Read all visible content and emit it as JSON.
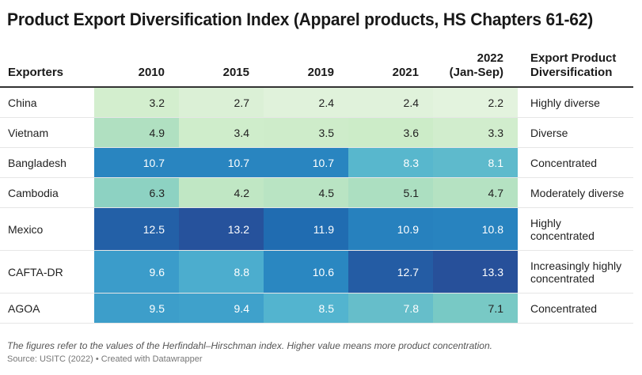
{
  "chart_data": {
    "type": "heatmap",
    "title": "Product Export Diversification Index (Apparel products, HS Chapters 61-62)",
    "columns": {
      "exporters": "Exporters",
      "years": [
        "2010",
        "2015",
        "2019",
        "2021",
        "2022 (Jan-Sep)"
      ],
      "year_lines": [
        [
          "2010"
        ],
        [
          "2015"
        ],
        [
          "2019"
        ],
        [
          "2021"
        ],
        [
          "2022",
          "(Jan-Sep)"
        ]
      ],
      "diversification": [
        "Export Product",
        "Diversification"
      ]
    },
    "rows": [
      {
        "exporter": "China",
        "values": [
          3.2,
          2.7,
          2.4,
          2.4,
          2.2
        ],
        "labels": [
          "3.2",
          "2.7",
          "2.4",
          "2.4",
          "2.2"
        ],
        "diversification": [
          "Highly diverse"
        ]
      },
      {
        "exporter": "Vietnam",
        "values": [
          4.9,
          3.4,
          3.5,
          3.6,
          3.3
        ],
        "labels": [
          "4.9",
          "3.4",
          "3.5",
          "3.6",
          "3.3"
        ],
        "diversification": [
          "Diverse"
        ]
      },
      {
        "exporter": "Bangladesh",
        "values": [
          10.7,
          10.7,
          10.7,
          8.3,
          8.1
        ],
        "labels": [
          "10.7",
          "10.7",
          "10.7",
          "8.3",
          "8.1"
        ],
        "diversification": [
          "Concentrated"
        ]
      },
      {
        "exporter": "Cambodia",
        "values": [
          6.3,
          4.2,
          4.5,
          5.1,
          4.7
        ],
        "labels": [
          "6.3",
          "4.2",
          "4.5",
          "5.1",
          "4.7"
        ],
        "diversification": [
          "Moderately diverse"
        ]
      },
      {
        "exporter": "Mexico",
        "values": [
          12.5,
          13.2,
          11.9,
          10.9,
          10.8
        ],
        "labels": [
          "12.5",
          "13.2",
          "11.9",
          "10.9",
          "10.8"
        ],
        "diversification": [
          "Highly",
          "concentrated"
        ]
      },
      {
        "exporter": "CAFTA-DR",
        "values": [
          9.6,
          8.8,
          10.6,
          12.7,
          13.3
        ],
        "labels": [
          "9.6",
          "8.8",
          "10.6",
          "12.7",
          "13.3"
        ],
        "diversification": [
          "Increasingly highly",
          "concentrated"
        ]
      },
      {
        "exporter": "AGOA",
        "values": [
          9.5,
          9.4,
          8.5,
          7.8,
          7.1
        ],
        "labels": [
          "9.5",
          "9.4",
          "8.5",
          "7.8",
          "7.1"
        ],
        "diversification": [
          "Concentrated"
        ]
      }
    ],
    "color_scale": {
      "min": 2.2,
      "max": 13.3,
      "stops": [
        "#e3f3de",
        "#c9ebc5",
        "#a6dcc0",
        "#7ccbc4",
        "#52b3cf",
        "#2f91c7",
        "#1f70b4",
        "#27509a"
      ],
      "light_text": "#222222",
      "dark_text": "#ffffff"
    },
    "note": "The figures refer to the values of the Herfindahl–Hirschman index. Higher value means more product concentration.",
    "source": "Source: USITC (2022) • Created with Datawrapper"
  }
}
